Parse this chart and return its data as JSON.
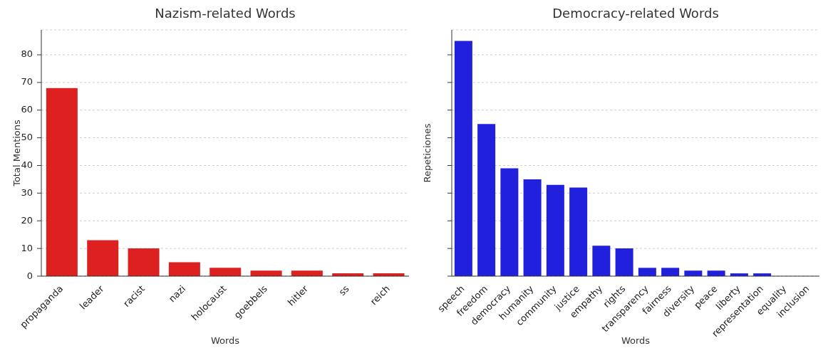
{
  "chart_data": [
    {
      "type": "bar",
      "title": "Nazism-related Words",
      "xlabel": "Words",
      "ylabel": "Total Mentions",
      "categories": [
        "propaganda",
        "leader",
        "racist",
        "nazi",
        "holocaust",
        "goebbels",
        "hitler",
        "ss",
        "reich"
      ],
      "values": [
        68,
        13,
        10,
        5,
        3,
        2,
        2,
        1,
        1
      ],
      "color": "#dd2121",
      "ylim": [
        0,
        89
      ],
      "yticks": [
        0,
        10,
        20,
        30,
        40,
        50,
        60,
        70,
        80
      ],
      "grid": "y"
    },
    {
      "type": "bar",
      "title": "Democracy-related Words",
      "xlabel": "Words",
      "ylabel": "Repeticiones",
      "categories": [
        "speech",
        "freedom",
        "democracy",
        "humanity",
        "community",
        "justice",
        "empathy",
        "rights",
        "transparency",
        "fairness",
        "diversity",
        "peace",
        "liberty",
        "representation",
        "equality",
        "inclusion"
      ],
      "values": [
        85,
        55,
        39,
        35,
        33,
        32,
        11,
        10,
        3,
        3,
        2,
        2,
        1,
        1,
        0,
        0
      ],
      "color": "#2121dd",
      "ylim": [
        0,
        89
      ],
      "yticks": [
        0,
        10,
        20,
        30,
        40,
        50,
        60,
        70,
        80
      ],
      "grid": "y",
      "tick_labels": "x"
    }
  ]
}
